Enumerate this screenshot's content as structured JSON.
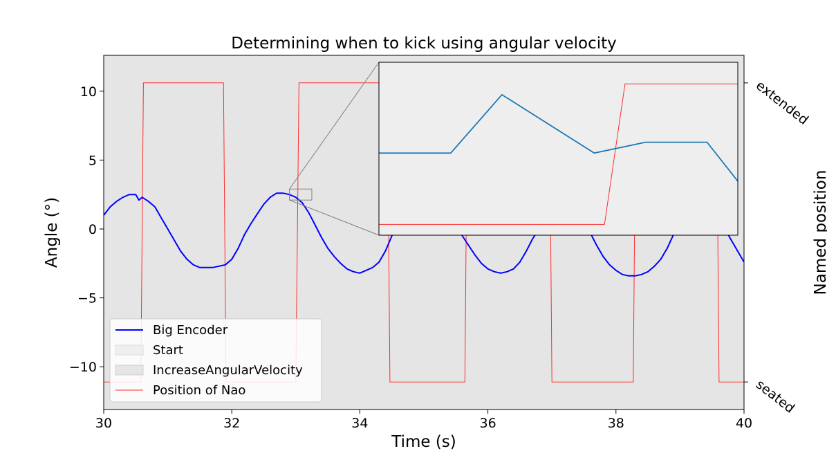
{
  "chart_data": {
    "type": "line",
    "title": "Determining when to kick using angular velocity",
    "xlabel": "Time (s)",
    "ylabel": "Angle (°)",
    "y2label": "Named position",
    "xlim": [
      30,
      40
    ],
    "ylim": [
      -13.1,
      12.6
    ],
    "xticks": [
      30,
      32,
      34,
      36,
      38,
      40
    ],
    "yticks": [
      10,
      5,
      0,
      -5,
      -10
    ],
    "ytick_labels": [
      "10",
      "5",
      "0",
      "−5",
      "−10"
    ],
    "y2ticks": [
      {
        "label": "extended",
        "value": 10.6
      },
      {
        "label": "seated",
        "value": -11.1
      }
    ],
    "shaded_regions": [
      {
        "name": "Start",
        "color": "#efefef",
        "from": 30,
        "to": 30
      },
      {
        "name": "IncreaseAngularVelocity",
        "color": "#e5e5e5",
        "from": 30,
        "to": 40
      }
    ],
    "series": [
      {
        "name": "Big Encoder",
        "color": "#0000ff",
        "x": [
          30.0,
          30.1,
          30.2,
          30.3,
          30.4,
          30.5,
          30.55,
          30.6,
          30.7,
          30.8,
          30.9,
          31.0,
          31.1,
          31.2,
          31.3,
          31.4,
          31.5,
          31.6,
          31.7,
          31.8,
          31.9,
          32.0,
          32.1,
          32.2,
          32.3,
          32.4,
          32.5,
          32.6,
          32.7,
          32.8,
          32.9,
          33.0,
          33.1,
          33.2,
          33.3,
          33.4,
          33.5,
          33.6,
          33.7,
          33.8,
          33.9,
          34.0,
          34.1,
          34.2,
          34.3,
          34.4,
          34.5,
          34.6,
          34.7,
          34.8,
          34.9,
          35.0,
          35.1,
          35.2,
          35.3,
          35.4,
          35.5,
          35.6,
          35.7,
          35.8,
          35.9,
          36.0,
          36.1,
          36.2,
          36.3,
          36.4,
          36.5,
          36.6,
          36.7,
          36.8,
          36.9,
          37.0,
          37.1,
          37.2,
          37.3,
          37.4,
          37.5,
          37.6,
          37.7,
          37.8,
          37.9,
          38.0,
          38.1,
          38.2,
          38.3,
          38.4,
          38.5,
          38.6,
          38.7,
          38.8,
          38.9,
          39.0,
          39.1,
          39.2,
          39.3,
          39.4,
          39.5,
          39.6,
          39.7,
          39.8,
          39.9,
          40.0
        ],
        "y": [
          1.0,
          1.6,
          2.0,
          2.3,
          2.5,
          2.5,
          2.1,
          2.3,
          2.0,
          1.6,
          0.8,
          0.0,
          -0.8,
          -1.6,
          -2.2,
          -2.6,
          -2.8,
          -2.8,
          -2.8,
          -2.7,
          -2.6,
          -2.2,
          -1.4,
          -0.4,
          0.4,
          1.1,
          1.8,
          2.3,
          2.6,
          2.6,
          2.5,
          2.3,
          1.9,
          1.2,
          0.3,
          -0.6,
          -1.4,
          -2.0,
          -2.5,
          -2.9,
          -3.1,
          -3.2,
          -3.0,
          -2.8,
          -2.4,
          -1.6,
          -0.5,
          0.6,
          1.4,
          1.9,
          2.0,
          2.0,
          1.8,
          1.6,
          1.3,
          0.8,
          0.2,
          -0.5,
          -1.2,
          -1.9,
          -2.5,
          -2.9,
          -3.1,
          -3.2,
          -3.1,
          -2.9,
          -2.4,
          -1.6,
          -0.7,
          0.0,
          0.6,
          1.0,
          1.1,
          1.2,
          1.2,
          1.0,
          0.5,
          -0.3,
          -1.2,
          -2.0,
          -2.6,
          -3.0,
          -3.3,
          -3.4,
          -3.4,
          -3.3,
          -3.1,
          -2.7,
          -2.2,
          -1.4,
          -0.4,
          0.5,
          1.3,
          1.8,
          2.0,
          1.8,
          1.4,
          0.8,
          0.0,
          -0.8,
          -1.6,
          -2.4
        ]
      },
      {
        "name": "Position of Nao",
        "color": "#ff2a2a",
        "step_points": [
          [
            30.0,
            -11.1
          ],
          [
            30.58,
            -11.1
          ],
          [
            30.62,
            10.6
          ],
          [
            31.87,
            10.6
          ],
          [
            31.91,
            -11.1
          ],
          [
            33.0,
            -11.1
          ],
          [
            33.05,
            10.6
          ],
          [
            34.43,
            10.6
          ],
          [
            34.47,
            -11.1
          ],
          [
            35.64,
            -11.1
          ],
          [
            35.68,
            10.6
          ],
          [
            36.96,
            10.6
          ],
          [
            37.0,
            -11.1
          ],
          [
            38.27,
            -11.1
          ],
          [
            38.31,
            10.6
          ],
          [
            39.57,
            10.6
          ],
          [
            39.61,
            -11.1
          ],
          [
            40.0,
            -11.1
          ]
        ]
      }
    ],
    "legend": {
      "placement": "lower-left",
      "entries": [
        {
          "label": "Big Encoder",
          "kind": "line",
          "color": "#0000ff"
        },
        {
          "label": "Start",
          "kind": "patch",
          "color": "#efefef"
        },
        {
          "label": "IncreaseAngularVelocity",
          "kind": "patch",
          "color": "#e5e5e5"
        },
        {
          "label": "Position of Nao",
          "kind": "line",
          "color": "#ff2a2a"
        }
      ]
    },
    "inset": {
      "xlim": [
        32.9,
        33.25
      ],
      "ylim": [
        2.1,
        2.9
      ],
      "placement": "top-right",
      "connector": "zoom-box",
      "encoder_x": [
        32.9,
        32.97,
        33.02,
        33.11,
        33.16,
        33.22,
        33.25
      ],
      "encoder_y": [
        2.48,
        2.48,
        2.75,
        2.48,
        2.53,
        2.53,
        2.35
      ],
      "nao_step_points": [
        [
          32.9,
          2.15
        ],
        [
          33.12,
          2.15
        ],
        [
          33.14,
          2.8
        ],
        [
          33.25,
          2.8
        ]
      ]
    }
  }
}
